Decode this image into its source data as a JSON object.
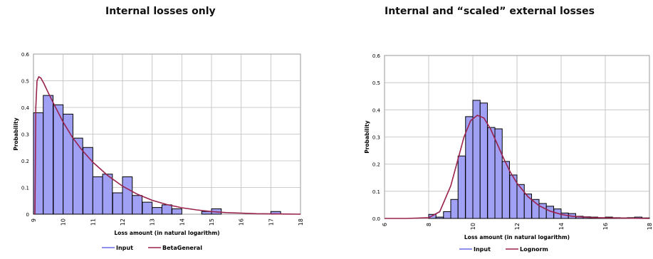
{
  "titles": {
    "left": "Internal losses only",
    "right": "Internal and “scaled” external losses"
  },
  "chart_data": [
    {
      "type": "bar",
      "title": "Internal losses only",
      "xlabel": "Loss amount (in natural logarithm)",
      "ylabel": "Probability",
      "xlim": [
        9,
        18
      ],
      "ylim": [
        0,
        0.6
      ],
      "xticks": [
        9,
        10,
        11,
        12,
        13,
        14,
        15,
        16,
        17,
        18
      ],
      "yticks": [
        0,
        0.1,
        0.2,
        0.3,
        0.4,
        0.5,
        0.6
      ],
      "grid": true,
      "legend_position": "bottom",
      "bin_width": 0.33,
      "bins_x": [
        9.0,
        9.33,
        9.67,
        10.0,
        10.33,
        10.67,
        11.0,
        11.33,
        11.67,
        12.0,
        12.33,
        12.67,
        13.0,
        13.33,
        13.67,
        14.0,
        14.33,
        14.67,
        15.0,
        15.33,
        15.67,
        16.0,
        16.33,
        16.67,
        17.0,
        17.33,
        17.67
      ],
      "input_values": [
        0.38,
        0.445,
        0.41,
        0.375,
        0.285,
        0.25,
        0.14,
        0.15,
        0.08,
        0.14,
        0.07,
        0.045,
        0.025,
        0.035,
        0.02,
        0.0,
        0.0,
        0.01,
        0.02,
        0.0,
        0.0,
        0.0,
        0.0,
        0.0,
        0.01,
        0.0,
        0.0
      ],
      "fit_curve": {
        "x": [
          9.05,
          9.08,
          9.12,
          9.18,
          9.25,
          9.35,
          9.5,
          9.7,
          10.0,
          10.3,
          10.6,
          11.0,
          11.5,
          12.0,
          12.5,
          13.0,
          13.5,
          14.0,
          14.5,
          15.0,
          15.5,
          16.0,
          16.5,
          17.0,
          17.5,
          18.0
        ],
        "y": [
          0.0,
          0.4,
          0.5,
          0.515,
          0.51,
          0.49,
          0.455,
          0.41,
          0.345,
          0.29,
          0.245,
          0.195,
          0.145,
          0.105,
          0.075,
          0.052,
          0.036,
          0.024,
          0.016,
          0.01,
          0.006,
          0.004,
          0.002,
          0.001,
          0.0005,
          0.0
        ]
      },
      "series": [
        {
          "name": "Input",
          "color": "#6a6ae8"
        },
        {
          "name": "BetaGeneral",
          "color": "#99224f"
        }
      ]
    },
    {
      "type": "bar",
      "title": "Internal and “scaled” external losses",
      "xlabel": "Loss amount (in natural logarithm)",
      "ylabel": "Probability",
      "xlim": [
        6,
        18
      ],
      "ylim": [
        0,
        0.6
      ],
      "xticks": [
        6,
        8,
        10,
        12,
        14,
        16,
        18
      ],
      "yticks": [
        0.0,
        0.1,
        0.2,
        0.3,
        0.4,
        0.5,
        0.6
      ],
      "grid": true,
      "legend_position": "bottom",
      "bin_width": 0.33,
      "bins_x": [
        8.0,
        8.33,
        8.67,
        9.0,
        9.33,
        9.67,
        10.0,
        10.33,
        10.67,
        11.0,
        11.33,
        11.67,
        12.0,
        12.33,
        12.67,
        13.0,
        13.33,
        13.67,
        14.0,
        14.33,
        14.67,
        15.0,
        15.33,
        15.67,
        16.0,
        16.33,
        16.67,
        17.0,
        17.33,
        17.67
      ],
      "input_values": [
        0.015,
        0.005,
        0.025,
        0.07,
        0.23,
        0.375,
        0.435,
        0.425,
        0.335,
        0.33,
        0.21,
        0.16,
        0.125,
        0.09,
        0.07,
        0.055,
        0.045,
        0.035,
        0.02,
        0.018,
        0.008,
        0.006,
        0.005,
        0.003,
        0.005,
        0.003,
        0.002,
        0.003,
        0.005,
        0.002
      ],
      "fit_curve": {
        "x": [
          6.0,
          7.0,
          8.0,
          8.5,
          9.0,
          9.3,
          9.6,
          9.9,
          10.2,
          10.5,
          10.8,
          11.1,
          11.4,
          11.7,
          12.0,
          12.5,
          13.0,
          13.5,
          14.0,
          14.5,
          15.0,
          15.5,
          16.0,
          17.0,
          18.0
        ],
        "y": [
          0.0,
          0.0,
          0.003,
          0.025,
          0.12,
          0.21,
          0.3,
          0.36,
          0.38,
          0.37,
          0.33,
          0.275,
          0.22,
          0.17,
          0.13,
          0.08,
          0.047,
          0.027,
          0.015,
          0.008,
          0.005,
          0.003,
          0.002,
          0.001,
          0.0
        ]
      },
      "series": [
        {
          "name": "Input",
          "color": "#6a6ae8"
        },
        {
          "name": "Lognorm",
          "color": "#99224f"
        }
      ]
    }
  ]
}
